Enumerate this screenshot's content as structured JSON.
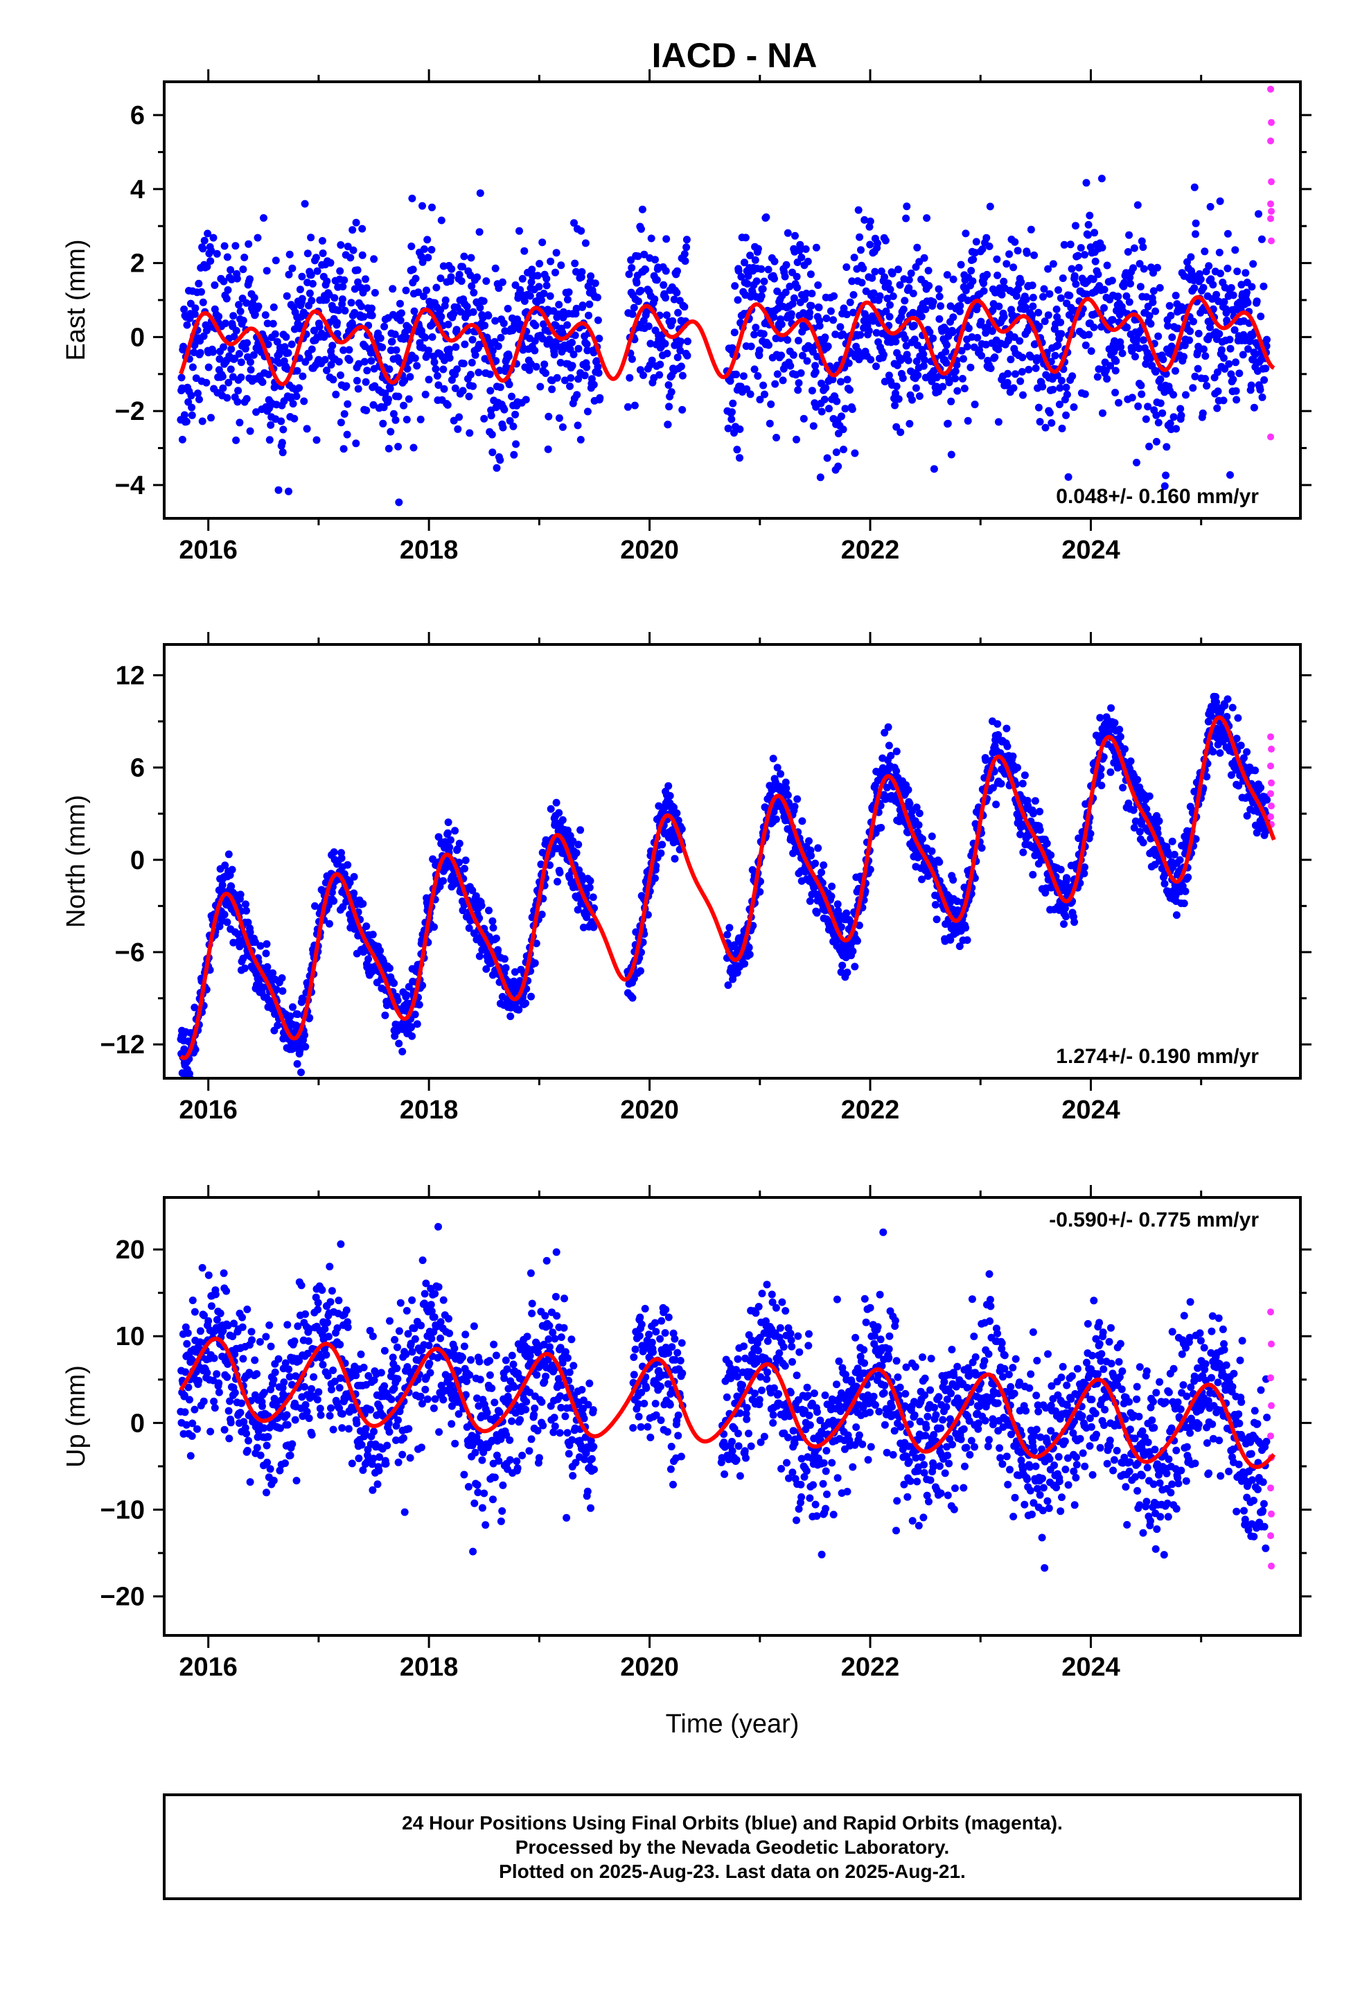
{
  "title": "IACD - NA",
  "xlabel": "Time (year)",
  "x_ticks": [
    "2016",
    "2018",
    "2020",
    "2022",
    "2024"
  ],
  "colors": {
    "final": "#0000ff",
    "rapid": "#ff33ff",
    "model": "#ff0000"
  },
  "footer": {
    "line1": "24 Hour Positions Using Final Orbits (blue) and Rapid Orbits (magenta).",
    "line2": "Processed by the Nevada Geodetic Laboratory.",
    "line3": "Plotted on 2025-Aug-23. Last data on 2025-Aug-21."
  },
  "chart_data": [
    {
      "type": "scatter",
      "ylabel": "East (mm)",
      "xlim": [
        2015.6,
        2025.9
      ],
      "ylim": [
        -4.9,
        6.9
      ],
      "y_ticks": [
        "6",
        "4",
        "2",
        "0",
        "−2",
        "−4"
      ],
      "rate_label": "0.048+/- 0.160 mm/yr",
      "rate_position": "bottom-right",
      "data_start": 2015.75,
      "data_end": 2025.6,
      "gap": [
        2019.55,
        2019.8
      ],
      "gap2": [
        2020.35,
        2020.7
      ],
      "model": {
        "offset": 0.0,
        "rate": 0.048,
        "annual_amp": 0.6,
        "annual_phase": 0.8,
        "semiannual_amp": 0.55,
        "semiannual_phase": 2.4
      },
      "scatter_sd": 1.2,
      "rapid_values": [
        6.7,
        5.8,
        5.3,
        4.2,
        3.6,
        3.4,
        3.2,
        2.6,
        -2.7
      ]
    },
    {
      "type": "scatter",
      "ylabel": "North (mm)",
      "xlim": [
        2015.6,
        2025.9
      ],
      "ylim": [
        -14.2,
        14.0
      ],
      "y_ticks": [
        "12",
        "6",
        "0",
        "−6",
        "−12"
      ],
      "rate_label": "1.274+/- 0.190 mm/yr",
      "rate_position": "bottom-right",
      "data_start": 2015.75,
      "data_end": 2025.6,
      "gap": [
        2019.5,
        2019.8
      ],
      "gap2": [
        2020.3,
        2020.7
      ],
      "model": {
        "offset": -2.5,
        "rate": 1.274,
        "annual_amp": 4.6,
        "annual_phase": 0.2,
        "semiannual_amp": 1.2,
        "semiannual_phase": 0.3
      },
      "scatter_sd": 1.0,
      "rapid_values": [
        8.0,
        7.2,
        6.1,
        5.0,
        4.3,
        3.5,
        2.8,
        2.3
      ]
    },
    {
      "type": "scatter",
      "ylabel": "Up (mm)",
      "xlim": [
        2015.6,
        2025.9
      ],
      "ylim": [
        -24.5,
        26.0
      ],
      "y_ticks": [
        "20",
        "10",
        "0",
        "−10",
        "−20"
      ],
      "rate_label": "-0.590+/- 0.775 mm/yr",
      "rate_position": "top-right",
      "data_start": 2015.75,
      "data_end": 2025.6,
      "gap": [
        2019.5,
        2019.85
      ],
      "gap2": [
        2020.3,
        2020.65
      ],
      "model": {
        "offset": 2.5,
        "rate": -0.59,
        "annual_amp": 4.5,
        "annual_phase": 1.3,
        "semiannual_amp": 0.6,
        "semiannual_phase": 0.0
      },
      "scatter_sd": 4.5,
      "rapid_values": [
        12.8,
        9.1,
        5.2,
        2.0,
        -1.5,
        -4.0,
        -7.5,
        -10.5,
        -13.0,
        -16.5
      ]
    }
  ]
}
